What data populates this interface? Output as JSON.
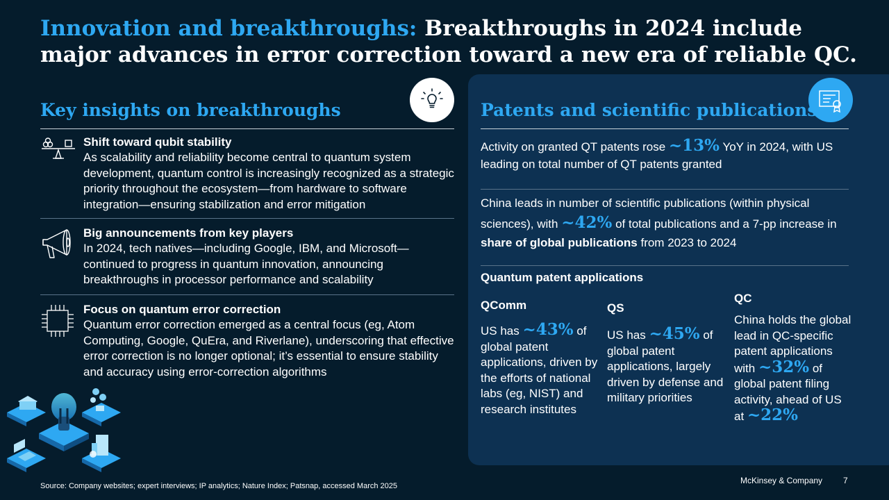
{
  "title": {
    "accent": "Innovation and breakthroughs:",
    "rest": " Breakthroughs in 2024 include major advances in error correction toward a new era of reliable QC."
  },
  "left": {
    "heading": "Key insights on breakthroughs",
    "header_icon": "lightbulb-icon",
    "insights": [
      {
        "icon": "balance-scale-icon",
        "head": "Shift toward qubit stability",
        "body": "As scalability and reliability become central to quantum system development, quantum control is increasingly recognized as a strategic priority throughout the ecosystem—from hardware to software integration—ensuring stabilization and error mitigation"
      },
      {
        "icon": "megaphone-icon",
        "head": "Big announcements from key players",
        "body": "In 2024, tech natives—including Google, IBM, and Microsoft—continued to progress in quantum innovation, announcing breakthroughs in processor performance and scalability"
      },
      {
        "icon": "chip-icon",
        "head": "Focus on quantum error correction",
        "body": "Quantum error correction emerged as a central focus (eg, Atom Computing, Google, QuEra, and Riverlane), underscoring that effective error correction is no longer optional; it’s essential to ensure stability and accuracy using error-correction algorithms"
      }
    ],
    "illustration_icon": "isometric-tech-illustration-icon"
  },
  "right": {
    "heading": "Patents and scientific publications",
    "header_icon": "certificate-icon",
    "patents": {
      "pre": "Activity on granted QT patents rose ",
      "stat": "~13%",
      "post": " YoY in 2024, with US leading on total number of QT patents granted"
    },
    "publications": {
      "pre": "China leads in number of scientific publications (within physical sciences), with ",
      "stat": "~42%",
      "mid": " of total publications and a 7-pp increase in ",
      "bold": "share of global publications",
      "post": " from 2023 to 2024"
    },
    "applications_heading": "Quantum patent applications",
    "columns": [
      {
        "title": "QComm",
        "pre": "US has ",
        "stat": "~43%",
        "post": " of global patent applications, driven by the efforts of national labs (eg, NIST) and research institutes"
      },
      {
        "title": "QS",
        "pre": "US has ",
        "stat": "~45%",
        "post": " of global patent applications, largely driven by defense and military priorities"
      },
      {
        "title": "QC",
        "pre": "China holds the global lead in QC-specific patent applications with ",
        "stat": "~32%",
        "post": " of global patent filing activity, ahead of US at ",
        "stat2": "~22%"
      }
    ]
  },
  "footer": {
    "source": "Source: Company websites; expert interviews; IP analytics; Nature Index; Patsnap, accessed March 2025",
    "brand": "McKinsey & Company",
    "page": "7"
  },
  "colors": {
    "background": "#051C2C",
    "panel": "#0D3152",
    "accent": "#2EA8F2",
    "text": "#FFFFFF"
  }
}
